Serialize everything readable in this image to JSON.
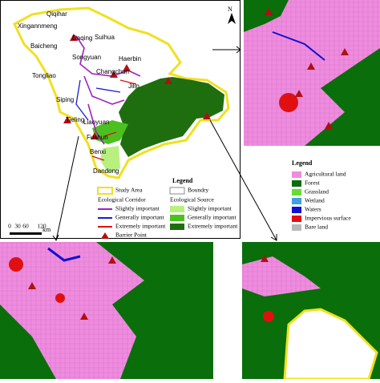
{
  "map": {
    "north": "N",
    "scale": {
      "ticks": [
        "0",
        "30",
        "60",
        "120"
      ],
      "unit": "km"
    },
    "cities": [
      "Qiqihar",
      "Xingannmeng",
      "Baicheng",
      "Daqing",
      "Suihua",
      "Songyuan",
      "Haerbin",
      "Changchun",
      "Tongliao",
      "Siping",
      "Jilin",
      "Tieling",
      "Liaoyuan",
      "Fushun",
      "Benxi",
      "Dandong"
    ],
    "legend": {
      "title": "Legend",
      "study_area": "Study Area",
      "boundary": "Boundry",
      "corridor_title": "Ecological Corridor",
      "source_title": "Ecological Source",
      "corridors": [
        {
          "name": "Slightly important",
          "color": "#a020c0"
        },
        {
          "name": "Generally important",
          "color": "#1a1adc"
        },
        {
          "name": "Extremely important",
          "color": "#e01010"
        }
      ],
      "sources": [
        {
          "name": "Slightly important",
          "color": "#b8f080"
        },
        {
          "name": "Generally important",
          "color": "#4cc020"
        },
        {
          "name": "Extremely important",
          "color": "#1e6e10"
        }
      ],
      "barrier": "Barrier Point"
    }
  },
  "land_legend": {
    "title": "Legend",
    "items": [
      {
        "name": "Agricultural land",
        "color": "#f08ce0"
      },
      {
        "name": "Forest",
        "color": "#0a6e0a"
      },
      {
        "name": "Grassland",
        "color": "#66dd33"
      },
      {
        "name": "Wetland",
        "color": "#40a0e0"
      },
      {
        "name": "Waters",
        "color": "#1010d0"
      },
      {
        "name": "Impervious surface",
        "color": "#e01010"
      },
      {
        "name": "Bare land",
        "color": "#b8b8b8"
      }
    ]
  }
}
